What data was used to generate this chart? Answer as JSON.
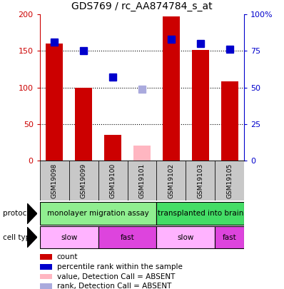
{
  "title": "GDS769 / rc_AA874784_s_at",
  "samples": [
    "GSM19098",
    "GSM19099",
    "GSM19100",
    "GSM19101",
    "GSM19102",
    "GSM19103",
    "GSM19105"
  ],
  "count_values": [
    160,
    100,
    35,
    null,
    197,
    151,
    108
  ],
  "count_absent": [
    null,
    null,
    null,
    20,
    null,
    null,
    null
  ],
  "rank_values": [
    81,
    75,
    57,
    null,
    83,
    80,
    76
  ],
  "rank_absent": [
    null,
    null,
    null,
    49,
    null,
    null,
    null
  ],
  "ylim_left": [
    0,
    200
  ],
  "ylim_right": [
    0,
    100
  ],
  "yticks_left": [
    0,
    50,
    100,
    150,
    200
  ],
  "yticks_right": [
    0,
    25,
    50,
    75,
    100
  ],
  "ytick_labels_left": [
    "0",
    "50",
    "100",
    "150",
    "200"
  ],
  "ytick_labels_right": [
    "0",
    "25",
    "50",
    "75",
    "100%"
  ],
  "bar_color": "#CC0000",
  "bar_absent_color": "#FFB6C1",
  "rank_color": "#0000CC",
  "rank_absent_color": "#AAAADD",
  "protocol_groups": [
    {
      "label": "monolayer migration assay",
      "start": 0,
      "end": 4,
      "color": "#90EE90"
    },
    {
      "label": "transplanted into brain",
      "start": 4,
      "end": 7,
      "color": "#44DD66"
    }
  ],
  "cell_type_groups": [
    {
      "label": "slow",
      "start": 0,
      "end": 2,
      "color": "#FFB3FF"
    },
    {
      "label": "fast",
      "start": 2,
      "end": 4,
      "color": "#DD44DD"
    },
    {
      "label": "slow",
      "start": 4,
      "end": 6,
      "color": "#FFB3FF"
    },
    {
      "label": "fast",
      "start": 6,
      "end": 7,
      "color": "#DD44DD"
    }
  ],
  "legend_items": [
    {
      "label": "count",
      "color": "#CC0000"
    },
    {
      "label": "percentile rank within the sample",
      "color": "#0000CC"
    },
    {
      "label": "value, Detection Call = ABSENT",
      "color": "#FFB6C1"
    },
    {
      "label": "rank, Detection Call = ABSENT",
      "color": "#AAAADD"
    }
  ],
  "left_axis_color": "#CC0000",
  "right_axis_color": "#0000CC",
  "bar_width": 0.6,
  "marker_size": 7
}
